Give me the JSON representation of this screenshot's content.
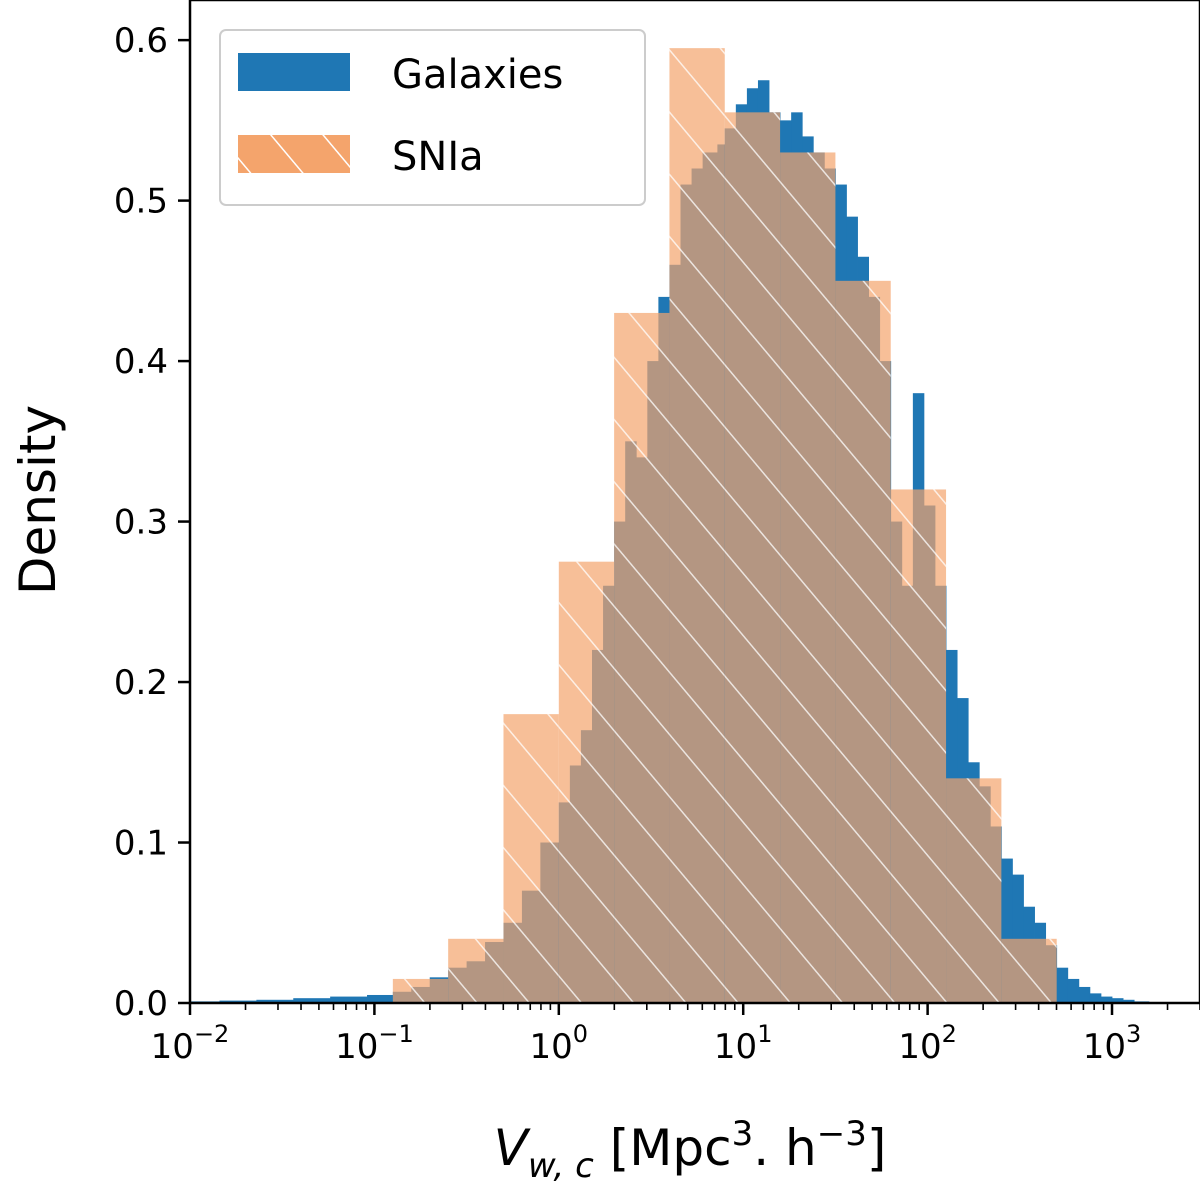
{
  "chart_data": {
    "type": "histogram",
    "x_scale": "log",
    "xlim": [
      0.01,
      3000
    ],
    "ylim": [
      0,
      0.625
    ],
    "ylabel": "Density",
    "xlabel": {
      "var": "V",
      "sub": "w, c",
      "unit_prefix": "[Mpc",
      "unit_sup1": "3",
      "unit_mid": ". h",
      "unit_sup2": "−3",
      "unit_suffix": "]"
    },
    "x_ticks": [
      {
        "value": 0.01,
        "base": "10",
        "exp": "−2"
      },
      {
        "value": 0.1,
        "base": "10",
        "exp": "−1"
      },
      {
        "value": 1,
        "base": "10",
        "exp": "0"
      },
      {
        "value": 10,
        "base": "10",
        "exp": "1"
      },
      {
        "value": 100,
        "base": "10",
        "exp": "2"
      },
      {
        "value": 1000,
        "base": "10",
        "exp": "3"
      }
    ],
    "y_ticks": [
      {
        "value": 0.0,
        "label": "0.0"
      },
      {
        "value": 0.1,
        "label": "0.1"
      },
      {
        "value": 0.2,
        "label": "0.2"
      },
      {
        "value": 0.3,
        "label": "0.3"
      },
      {
        "value": 0.4,
        "label": "0.4"
      },
      {
        "value": 0.5,
        "label": "0.5"
      },
      {
        "value": 0.6,
        "label": "0.6"
      }
    ],
    "legend_position": "top-left",
    "series": [
      {
        "name": "Galaxies",
        "color": "#1f77b4",
        "style": "solid",
        "log10_bin_edges": [
          -2.0,
          -1.84,
          -1.64,
          -1.44,
          -1.24,
          -1.04,
          -0.9,
          -0.8,
          -0.7,
          -0.6,
          -0.5,
          -0.4,
          -0.3,
          -0.2,
          -0.1,
          0.0,
          0.06,
          0.12,
          0.18,
          0.24,
          0.3,
          0.36,
          0.42,
          0.48,
          0.54,
          0.6,
          0.66,
          0.72,
          0.78,
          0.86,
          0.9,
          0.96,
          1.02,
          1.08,
          1.14,
          1.2,
          1.26,
          1.32,
          1.38,
          1.44,
          1.5,
          1.56,
          1.62,
          1.68,
          1.74,
          1.8,
          1.86,
          1.92,
          1.98,
          2.04,
          2.1,
          2.16,
          2.22,
          2.28,
          2.34,
          2.4,
          2.46,
          2.52,
          2.58,
          2.64,
          2.7,
          2.76,
          2.82,
          2.88,
          2.94,
          3.0,
          3.06,
          3.12,
          3.2,
          3.3
        ],
        "values": [
          0.001,
          0.0015,
          0.002,
          0.003,
          0.004,
          0.005,
          0.007,
          0.01,
          0.016,
          0.022,
          0.026,
          0.038,
          0.05,
          0.07,
          0.1,
          0.125,
          0.148,
          0.17,
          0.22,
          0.26,
          0.3,
          0.35,
          0.34,
          0.4,
          0.44,
          0.46,
          0.51,
          0.52,
          0.53,
          0.535,
          0.545,
          0.56,
          0.57,
          0.575,
          0.555,
          0.55,
          0.555,
          0.54,
          0.53,
          0.52,
          0.51,
          0.49,
          0.465,
          0.44,
          0.4,
          0.3,
          0.26,
          0.38,
          0.31,
          0.26,
          0.22,
          0.19,
          0.15,
          0.135,
          0.11,
          0.09,
          0.08,
          0.06,
          0.05,
          0.036,
          0.022,
          0.015,
          0.01,
          0.006,
          0.004,
          0.003,
          0.002,
          0.001,
          0.0005
        ]
      },
      {
        "name": "SNIa",
        "color": "#f4a46c",
        "style": "hatched",
        "log10_bin_edges": [
          -0.9,
          -0.6,
          -0.3,
          0.0,
          0.3,
          0.6,
          0.9,
          1.2,
          1.5,
          1.8,
          2.1,
          2.4,
          2.7,
          3.0
        ],
        "values": [
          0.015,
          0.04,
          0.18,
          0.275,
          0.43,
          0.595,
          0.555,
          0.53,
          0.45,
          0.32,
          0.14,
          0.04,
          0.0
        ]
      }
    ]
  }
}
